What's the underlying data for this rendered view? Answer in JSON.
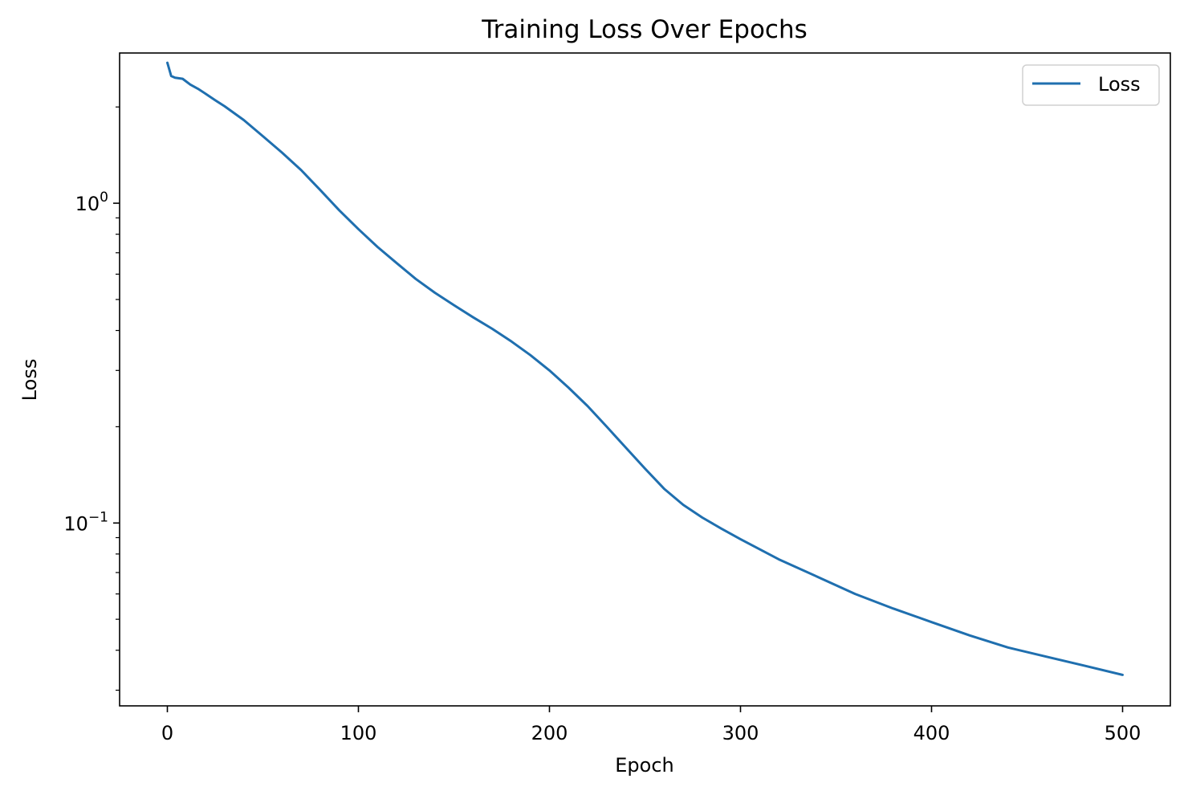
{
  "chart_data": {
    "type": "line",
    "title": "Training Loss Over Epochs",
    "xlabel": "Epoch",
    "ylabel": "Loss",
    "yscale": "log",
    "xlim": [
      -25,
      525
    ],
    "ylim": [
      0.0268,
      2.95
    ],
    "x_ticks": [
      "0",
      "100",
      "200",
      "300",
      "400",
      "500"
    ],
    "x_tick_values": [
      0,
      100,
      200,
      300,
      400,
      500
    ],
    "y_ticks": [
      {
        "base": "10",
        "exp": "0",
        "value": 1
      },
      {
        "base": "10",
        "exp": "−1",
        "value": 0.1
      }
    ],
    "grid": false,
    "legend": {
      "position": "top-right",
      "entries": [
        "Loss"
      ]
    },
    "colors": {
      "line": "#1f6faf",
      "axes": "#000000"
    },
    "series": [
      {
        "name": "Loss",
        "x": [
          0,
          2,
          4,
          8,
          12,
          16,
          20,
          25,
          30,
          40,
          50,
          60,
          70,
          80,
          90,
          100,
          110,
          120,
          130,
          140,
          150,
          160,
          170,
          180,
          190,
          200,
          210,
          220,
          230,
          240,
          250,
          260,
          270,
          280,
          290,
          300,
          320,
          340,
          360,
          380,
          400,
          420,
          440,
          460,
          480,
          500
        ],
        "y": [
          2.75,
          2.5,
          2.47,
          2.45,
          2.35,
          2.28,
          2.2,
          2.1,
          2.01,
          1.82,
          1.62,
          1.44,
          1.27,
          1.1,
          0.95,
          0.83,
          0.73,
          0.65,
          0.58,
          0.525,
          0.48,
          0.44,
          0.405,
          0.37,
          0.335,
          0.3,
          0.265,
          0.232,
          0.2,
          0.172,
          0.148,
          0.128,
          0.114,
          0.104,
          0.096,
          0.089,
          0.077,
          0.068,
          0.06,
          0.054,
          0.049,
          0.0445,
          0.0408,
          0.0382,
          0.0358,
          0.0335
        ]
      }
    ]
  }
}
